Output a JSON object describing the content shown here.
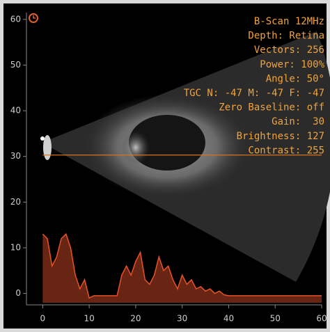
{
  "chart_data": {
    "type": "area",
    "annotations": [
      "B-Scan 12MHz",
      "Depth: Retina",
      "Vectors: 256",
      "Power: 100%",
      "Angle: 50°",
      "TGC N: -47 M: -47 F: -47",
      "Zero Baseline: off",
      "Gain:  30",
      "Brightness: 127",
      "Contrast: 255"
    ],
    "x": [
      0,
      1,
      2,
      3,
      4,
      5,
      6,
      7,
      8,
      9,
      10,
      11,
      12,
      13,
      14,
      15,
      16,
      17,
      18,
      19,
      20,
      21,
      22,
      23,
      24,
      25,
      26,
      27,
      28,
      29,
      30,
      31,
      32,
      33,
      34,
      35,
      36,
      37,
      38,
      39,
      40,
      41,
      42,
      43,
      44,
      45,
      46,
      47,
      48,
      49,
      50,
      51,
      52,
      53,
      54,
      55,
      56,
      57,
      58,
      59,
      60
    ],
    "series": [
      {
        "color": "#e8522a",
        "values": [
          13,
          12,
          6,
          8,
          12,
          13,
          10,
          4,
          1,
          3,
          -1,
          -0.5,
          -0.5,
          -0.5,
          -0.5,
          -0.5,
          -0.5,
          4,
          6,
          4,
          7,
          9,
          3,
          2,
          4,
          8,
          5,
          6,
          3,
          1,
          4,
          2,
          3,
          1,
          1.5,
          0.5,
          1,
          0,
          0.5,
          -0.3,
          -0.5,
          -0.5,
          -0.5,
          -0.5,
          -0.5,
          -0.5,
          -0.5,
          -0.5,
          -0.5,
          -0.5,
          -0.5,
          -0.5,
          -0.5,
          -0.5,
          -0.5,
          -0.5,
          -0.5,
          -0.5,
          -0.5,
          -0.5,
          -0.5
        ]
      }
    ],
    "cursor_y": 30.3,
    "cursor_color": "#d9741f",
    "xlim": [
      -3.5,
      60
    ],
    "ylim": [
      -2.5,
      61.5
    ],
    "xticks": [
      0,
      10,
      20,
      30,
      40,
      50,
      60
    ],
    "yticks": [
      0,
      10,
      20,
      30,
      40,
      50,
      60
    ]
  }
}
